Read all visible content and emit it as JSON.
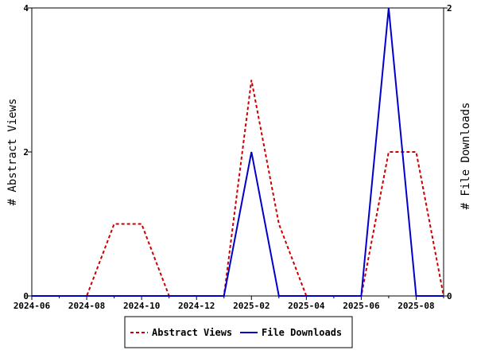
{
  "chart_data": {
    "type": "line",
    "x": [
      "2024-06",
      "2024-07",
      "2024-08",
      "2024-09",
      "2024-10",
      "2024-11",
      "2024-12",
      "2025-01",
      "2025-02",
      "2025-03",
      "2025-04",
      "2025-05",
      "2025-06",
      "2025-07",
      "2025-08",
      "2025-09"
    ],
    "x_tick_labels": [
      "2024-06",
      "2024-08",
      "2024-10",
      "2024-12",
      "2025-02",
      "2025-04",
      "2025-06",
      "2025-08"
    ],
    "series": [
      {
        "name": "Abstract Views",
        "axis": "left",
        "color": "#cc0000",
        "style": "dashed",
        "values": [
          0,
          0,
          0,
          1,
          1,
          0,
          0,
          0,
          3,
          1,
          0,
          0,
          0,
          2,
          2,
          0
        ]
      },
      {
        "name": "File Downloads",
        "axis": "right",
        "color": "#0000cc",
        "style": "solid",
        "values": [
          0,
          0,
          0,
          0,
          0,
          0,
          0,
          0,
          1,
          0,
          0,
          0,
          0,
          2,
          0,
          0
        ]
      }
    ],
    "ylabel": "# Abstract Views",
    "y2label": "# File Downloads",
    "ylim": [
      0,
      4
    ],
    "y2lim": [
      0,
      2
    ],
    "y_tick_labels": [
      "0",
      "2",
      "4"
    ],
    "y2_tick_labels": [
      "0",
      "2"
    ],
    "grid": false,
    "legend_placement": "bottom-center"
  }
}
